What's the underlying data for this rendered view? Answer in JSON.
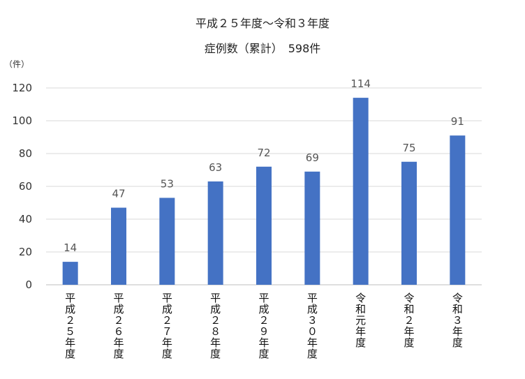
{
  "chart_data": {
    "type": "bar",
    "title": "平成２５年度～令和３年度",
    "subtitle": "症例数（累計）　598件",
    "unit_label": "（件）",
    "categories": [
      "平成２５年度",
      "平成２６年度",
      "平成２７年度",
      "平成２８年度",
      "平成２９年度",
      "平成３０年度",
      "令和元年度",
      "令和２年度",
      "令和３年度"
    ],
    "values": [
      14,
      47,
      53,
      63,
      72,
      69,
      114,
      75,
      91
    ],
    "ylim": [
      0,
      120
    ],
    "yticks": [
      "0",
      "20",
      "40",
      "60",
      "80",
      "100",
      "120"
    ],
    "grid": true,
    "legend": "none",
    "bar_color": "#4472c4"
  }
}
